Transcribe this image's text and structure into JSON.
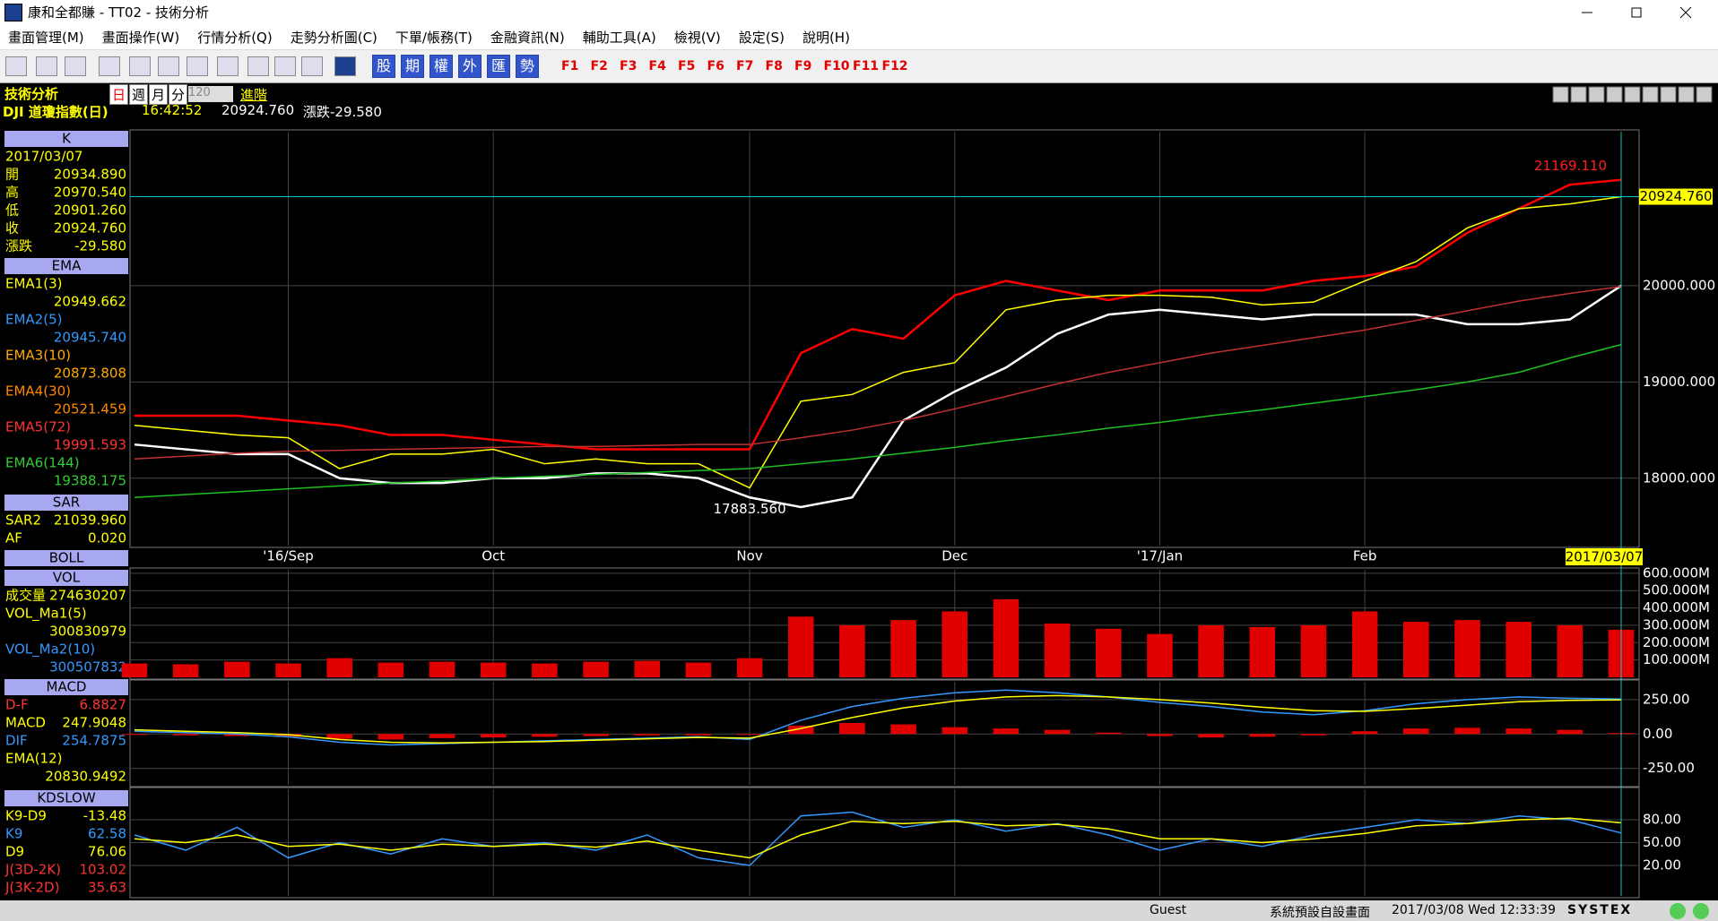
{
  "window": {
    "title": "康和全都賺 - TT02 - 技術分析",
    "menu": [
      "畫面管理(M)",
      "畫面操作(W)",
      "行情分析(Q)",
      "走勢分析圖(C)",
      "下單/帳務(T)",
      "金融資訊(N)",
      "輔助工具(A)",
      "檢視(V)",
      "設定(S)",
      "說明(H)"
    ],
    "quick_buttons": [
      "股",
      "期",
      "權",
      "外",
      "匯",
      "勢"
    ],
    "function_keys": [
      "F1",
      "F2",
      "F3",
      "F4",
      "F5",
      "F6",
      "F7",
      "F8",
      "F9",
      "F10",
      "F11",
      "F12"
    ]
  },
  "header": {
    "title": "技術分析",
    "periods": [
      "日",
      "週",
      "月",
      "分"
    ],
    "count": "120",
    "advanced": "進階",
    "symbol": "DJI 道瓊指數(日)",
    "time": "16:42:52",
    "price": "20924.760",
    "change": "漲跌-29.580"
  },
  "info_panel": [
    {
      "title": "K",
      "rows": [
        {
          "value": "2017/03/07",
          "color": "#ffff00"
        },
        {
          "label": "開",
          "value": "20934.890",
          "color": "#ffff00"
        },
        {
          "label": "高",
          "value": "20970.540",
          "color": "#ffff00"
        },
        {
          "label": "低",
          "value": "20901.260",
          "color": "#ffff00"
        },
        {
          "label": "收",
          "value": "20924.760",
          "color": "#ffff00"
        },
        {
          "label": "漲跌",
          "value": "-29.580",
          "color": "#ffff00"
        }
      ]
    },
    {
      "title": "EMA",
      "rows": [
        {
          "label": "EMA1(3)",
          "value": "20949.662",
          "color": "#ffff00"
        },
        {
          "label": "EMA2(5)",
          "value": "20945.740",
          "color": "#3399ff"
        },
        {
          "label": "EMA3(10)",
          "value": "20873.808",
          "color": "#ffaa00"
        },
        {
          "label": "EMA4(30)",
          "value": "20521.459",
          "color": "#ff8800"
        },
        {
          "label": "EMA5(72)",
          "value": "19991.593",
          "color": "#ff3333"
        },
        {
          "label": "EMA6(144)",
          "value": "19388.175",
          "color": "#33cc33"
        }
      ]
    },
    {
      "title": "SAR",
      "rows": [
        {
          "label": "SAR2",
          "value": "21039.960",
          "color": "#ffff00"
        },
        {
          "label": "AF",
          "value": "0.020",
          "color": "#ffff00"
        }
      ]
    },
    {
      "title": "BOLL",
      "rows": []
    },
    {
      "title": "VOL",
      "rows": [
        {
          "label": "成交量",
          "value": "274630207",
          "color": "#ffff00"
        },
        {
          "label": "VOL_Ma1(5)",
          "value": "300830979",
          "color": "#ffff00"
        },
        {
          "label": "VOL_Ma2(10)",
          "value": "300507832",
          "color": "#3399ff"
        }
      ]
    },
    {
      "title": "MACD",
      "rows": [
        {
          "label": "D-F",
          "value": "6.8827",
          "color": "#ff3333"
        },
        {
          "label": "MACD",
          "value": "247.9048",
          "color": "#ffff00"
        },
        {
          "label": "DIF",
          "value": "254.7875",
          "color": "#3399ff"
        },
        {
          "label": "EMA(12)",
          "value": "20830.9492",
          "color": "#ffff00"
        }
      ]
    },
    {
      "title": "KDSLOW",
      "rows": [
        {
          "label": "K9-D9",
          "value": "-13.48",
          "color": "#ffff00"
        },
        {
          "label": "K9",
          "value": "62.58",
          "color": "#3399ff"
        },
        {
          "label": "D9",
          "value": "76.06",
          "color": "#ffff00"
        },
        {
          "label": "J(3D-2K)",
          "value": "103.02",
          "color": "#ff3333"
        },
        {
          "label": "J(3K-2D)",
          "value": "35.63",
          "color": "#ff3333"
        }
      ]
    }
  ],
  "chart_data": [
    {
      "type": "line",
      "categories": [
        null,
        null,
        null,
        "'16/Sep",
        null,
        null,
        null,
        "Oct",
        null,
        null,
        null,
        null,
        "Nov",
        null,
        null,
        null,
        "Dec",
        null,
        null,
        null,
        "'17/Jan",
        null,
        null,
        null,
        "Feb",
        null,
        null,
        null,
        null,
        "2017/03/07"
      ],
      "series": [
        {
          "color": "#ff0000",
          "values": [
            18650,
            18650,
            18650,
            18600,
            18550,
            18450,
            18450,
            18400,
            18350,
            18300,
            18300,
            18300,
            18300,
            19300,
            19550,
            19450,
            19900,
            20050,
            19950,
            19850,
            19950,
            19950,
            19950,
            20050,
            20100,
            20200,
            20550,
            20800,
            21050,
            21100
          ]
        },
        {
          "color": "#ffffff",
          "values": [
            18350,
            18300,
            18250,
            18250,
            18000,
            17950,
            17950,
            18000,
            18000,
            18050,
            18050,
            18000,
            17800,
            17700,
            17800,
            18600,
            18900,
            19150,
            19500,
            19700,
            19750,
            19700,
            19650,
            19700,
            19700,
            19700,
            19600,
            19600,
            19650,
            20000
          ]
        },
        {
          "color": "#ffff00",
          "values": [
            18550,
            18500,
            18450,
            18420,
            18100,
            18250,
            18250,
            18300,
            18150,
            18200,
            18150,
            18150,
            17900,
            18800,
            18870,
            19100,
            19200,
            19750,
            19850,
            19900,
            19900,
            19880,
            19800,
            19830,
            20050,
            20250,
            20600,
            20800,
            20850,
            20924.76
          ]
        },
        {
          "color": "#c03030",
          "values": [
            18200,
            18230,
            18260,
            18280,
            18290,
            18300,
            18310,
            18320,
            18330,
            18330,
            18340,
            18350,
            18350,
            18420,
            18500,
            18600,
            18720,
            18850,
            18980,
            19100,
            19200,
            19300,
            19380,
            19460,
            19540,
            19640,
            19740,
            19840,
            19920,
            19991.593
          ]
        },
        {
          "color": "#1fbf1f",
          "values": [
            17800,
            17830,
            17860,
            17890,
            17920,
            17950,
            17970,
            18000,
            18020,
            18040,
            18060,
            18080,
            18100,
            18150,
            18200,
            18260,
            18320,
            18390,
            18450,
            18520,
            18580,
            18650,
            18710,
            18780,
            18850,
            18920,
            19000,
            19100,
            19250,
            19388.175
          ]
        }
      ],
      "ylim": [
        17300,
        21600
      ],
      "yticks": [
        {
          "value": 18000,
          "label": "18000.000"
        },
        {
          "value": 19000,
          "label": "19000.000"
        },
        {
          "value": 20000,
          "label": "20000.000"
        }
      ],
      "high": {
        "value": 21169.11,
        "label": "21169.110"
      },
      "low": {
        "value": 17883.56,
        "label": "17883.560"
      },
      "last_price": {
        "value": 20924.76,
        "label": "20924.760"
      },
      "grid": true
    },
    {
      "type": "bar",
      "series": [
        {
          "color": "#e00000",
          "values": [
            80000000,
            75000000,
            90000000,
            80000000,
            110000000,
            85000000,
            90000000,
            85000000,
            80000000,
            90000000,
            95000000,
            85000000,
            110000000,
            350000000,
            300000000,
            330000000,
            380000000,
            450000000,
            310000000,
            280000000,
            250000000,
            300000000,
            290000000,
            300000000,
            380000000,
            320000000,
            330000000,
            320000000,
            300000000,
            274630207
          ]
        }
      ],
      "ylim": [
        0,
        620000000
      ],
      "yticks": [
        {
          "value": 100000000,
          "label": "100.000M"
        },
        {
          "value": 200000000,
          "label": "200.000M"
        },
        {
          "value": 300000000,
          "label": "300.000M"
        },
        {
          "value": 400000000,
          "label": "400.000M"
        },
        {
          "value": 500000000,
          "label": "500.000M"
        },
        {
          "value": 600000000,
          "label": "600.000M"
        }
      ],
      "grid": true
    },
    {
      "type": "line",
      "series": [
        {
          "type": "bar",
          "color": "#e00000",
          "values": [
            0,
            -10,
            -15,
            -20,
            -35,
            -40,
            -30,
            -25,
            -20,
            -15,
            -10,
            -10,
            -5,
            60,
            80,
            70,
            50,
            40,
            30,
            10,
            -15,
            -25,
            -20,
            -10,
            20,
            40,
            45,
            40,
            30,
            6.8827
          ]
        },
        {
          "color": "#3399ff",
          "values": [
            20,
            10,
            0,
            -20,
            -60,
            -80,
            -70,
            -60,
            -50,
            -40,
            -30,
            -20,
            -40,
            100,
            200,
            260,
            300,
            320,
            300,
            270,
            230,
            200,
            160,
            140,
            170,
            220,
            250,
            270,
            260,
            254.7875
          ]
        },
        {
          "color": "#ffff00",
          "values": [
            30,
            20,
            10,
            -5,
            -40,
            -60,
            -65,
            -60,
            -55,
            -45,
            -35,
            -25,
            -30,
            40,
            120,
            190,
            240,
            270,
            280,
            270,
            250,
            225,
            195,
            170,
            165,
            185,
            210,
            235,
            245,
            247.9048
          ]
        }
      ],
      "ylim": [
        -370,
        380
      ],
      "yticks": [
        {
          "value": 250,
          "label": "250.00"
        },
        {
          "value": 0,
          "label": "0.00"
        },
        {
          "value": -250,
          "label": "-250.00"
        }
      ],
      "grid": true
    },
    {
      "type": "line",
      "series": [
        {
          "color": "#3399ff",
          "values": [
            60,
            40,
            70,
            30,
            50,
            35,
            55,
            45,
            50,
            40,
            60,
            30,
            20,
            85,
            90,
            70,
            80,
            65,
            75,
            60,
            40,
            55,
            45,
            60,
            70,
            80,
            75,
            85,
            80,
            62.58
          ]
        },
        {
          "color": "#ffff00",
          "values": [
            55,
            50,
            60,
            45,
            48,
            40,
            48,
            45,
            48,
            44,
            52,
            40,
            30,
            60,
            78,
            75,
            78,
            72,
            74,
            68,
            55,
            55,
            50,
            55,
            62,
            72,
            75,
            80,
            82,
            76.06
          ]
        }
      ],
      "ylim": [
        -20,
        120
      ],
      "yticks": [
        {
          "value": 80,
          "label": "80.00"
        },
        {
          "value": 50,
          "label": "50.00"
        },
        {
          "value": 20,
          "label": "20.00"
        }
      ],
      "grid": true
    }
  ],
  "status": {
    "user": "Guest",
    "layout": "系統預設自設畫面",
    "datetime": "2017/03/08 Wed 12:33:39",
    "brand": "SYSTEX"
  }
}
